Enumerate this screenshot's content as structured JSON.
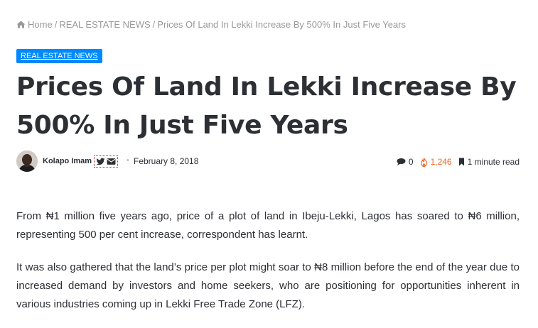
{
  "breadcrumb": {
    "home": "Home",
    "separator": "/",
    "category": "REAL ESTATE NEWS",
    "current": "Prices Of Land In Lekki Increase By 500% In Just Five Years"
  },
  "category_badge": "REAL ESTATE NEWS",
  "title": "Prices Of Land In Lekki Increase By 500% In Just Five Years",
  "meta": {
    "author": "Kolapo Imam",
    "date": "February 8, 2018",
    "comments": "0",
    "views": "1,246",
    "read_time": "1 minute read"
  },
  "body": {
    "paragraphs": [
      "From ₦1 million five years ago, price of a plot of land in Ibeju-Lekki, Lagos has soared to ₦6 million, representing 500 per cent increase, correspondent has learnt.",
      "It was also gathered that the land’s price per plot might soar to ₦8 million before the end of the year due to increased demand by investors and home seekers, who are positioning for opportunities inherent in various industries coming up in Lekki Free Trade Zone (LFZ)."
    ]
  },
  "colors": {
    "accent": "#0088ff",
    "views": "#f26522",
    "text": "#2c2f34",
    "muted": "#999999"
  },
  "icons": [
    "home-icon",
    "twitter-icon",
    "envelope-icon",
    "comment-icon",
    "fire-icon",
    "bookmark-icon"
  ]
}
